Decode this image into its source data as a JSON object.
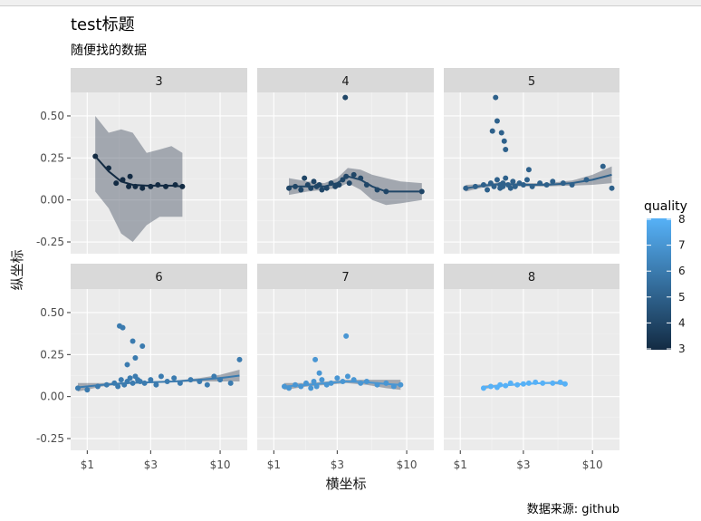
{
  "chart_data": {
    "type": "scatter",
    "title": "test标题",
    "subtitle": "随便找的数据",
    "caption": "数据来源: github",
    "xlabel": "横坐标",
    "ylabel": "纵坐标",
    "x_scale": "log",
    "x_ticks": [
      1,
      3,
      10
    ],
    "x_tick_labels": [
      "$1",
      "$3",
      "$10"
    ],
    "xlim": [
      0.75,
      16
    ],
    "y_ticks": [
      -0.25,
      0,
      0.25,
      0.5
    ],
    "y_tick_labels": [
      "-0.25",
      "0.00",
      "0.25",
      "0.50"
    ],
    "ylim": [
      -0.32,
      0.64
    ],
    "grid": true,
    "facet_by": "quality",
    "legend": {
      "title": "quality",
      "position": "right",
      "type": "colorbar",
      "breaks": [
        3,
        4,
        5,
        6,
        7,
        8
      ],
      "low_color": "#132b43",
      "high_color": "#56b1f7"
    },
    "smooth": true,
    "panels": [
      {
        "label": "3",
        "quality": 3,
        "x": [
          1.15,
          1.45,
          1.65,
          1.85,
          2.05,
          2.1,
          2.3,
          2.6,
          3.0,
          3.4,
          3.9,
          4.6,
          5.2
        ],
        "y": [
          0.26,
          0.19,
          0.1,
          0.12,
          0.08,
          0.14,
          0.08,
          0.07,
          0.08,
          0.09,
          0.08,
          0.09,
          0.08
        ],
        "smooth_x": [
          1.15,
          1.45,
          1.8,
          2.2,
          2.8,
          3.5,
          4.3,
          5.2
        ],
        "smooth_y": [
          0.26,
          0.17,
          0.11,
          0.09,
          0.085,
          0.085,
          0.085,
          0.08
        ],
        "band_low": [
          0.05,
          -0.05,
          -0.2,
          -0.25,
          -0.15,
          -0.1,
          -0.1,
          -0.1
        ],
        "band_high": [
          0.5,
          0.4,
          0.42,
          0.4,
          0.28,
          0.3,
          0.32,
          0.28
        ]
      },
      {
        "label": "4",
        "quality": 4,
        "x": [
          1.3,
          1.45,
          1.6,
          1.7,
          1.8,
          1.9,
          2.0,
          2.1,
          2.2,
          2.3,
          2.5,
          2.7,
          2.9,
          3.1,
          3.3,
          3.5,
          3.7,
          4.0,
          4.5,
          5.0,
          6.0,
          7.0,
          13.0,
          3.45
        ],
        "y": [
          0.07,
          0.08,
          0.06,
          0.13,
          0.09,
          0.07,
          0.11,
          0.08,
          0.09,
          0.06,
          0.07,
          0.1,
          0.08,
          0.09,
          0.12,
          0.14,
          0.1,
          0.15,
          0.13,
          0.09,
          0.06,
          0.05,
          0.05,
          0.61
        ],
        "smooth_x": [
          1.3,
          1.8,
          2.4,
          3.0,
          3.6,
          4.5,
          5.5,
          7.0,
          9.0,
          13.0
        ],
        "smooth_y": [
          0.08,
          0.08,
          0.08,
          0.1,
          0.14,
          0.12,
          0.08,
          0.05,
          0.05,
          0.05
        ],
        "band_low": [
          0.03,
          0.05,
          0.06,
          0.07,
          0.1,
          0.06,
          0.0,
          -0.03,
          -0.02,
          0.0
        ],
        "band_high": [
          0.13,
          0.11,
          0.1,
          0.13,
          0.19,
          0.18,
          0.15,
          0.13,
          0.11,
          0.1
        ]
      },
      {
        "label": "5",
        "quality": 5,
        "x": [
          1.1,
          1.3,
          1.5,
          1.6,
          1.7,
          1.8,
          1.9,
          2.0,
          2.0,
          2.1,
          2.1,
          2.2,
          2.3,
          2.4,
          2.5,
          2.6,
          2.8,
          3.0,
          3.2,
          3.5,
          4.0,
          4.5,
          5.0,
          6.0,
          7.0,
          9.0,
          12.0,
          14.0,
          1.75,
          1.9,
          2.05,
          2.15,
          1.85,
          2.2,
          3.3
        ],
        "y": [
          0.07,
          0.08,
          0.09,
          0.06,
          0.1,
          0.08,
          0.12,
          0.07,
          0.09,
          0.1,
          0.08,
          0.13,
          0.09,
          0.07,
          0.11,
          0.08,
          0.1,
          0.09,
          0.12,
          0.08,
          0.1,
          0.09,
          0.11,
          0.1,
          0.09,
          0.12,
          0.2,
          0.07,
          0.41,
          0.47,
          0.4,
          0.35,
          0.61,
          0.3,
          0.18
        ],
        "smooth_x": [
          1.1,
          1.5,
          2.0,
          3.0,
          4.5,
          7.0,
          10.0,
          14.0
        ],
        "smooth_y": [
          0.07,
          0.085,
          0.095,
          0.09,
          0.09,
          0.1,
          0.12,
          0.15
        ],
        "band_low": [
          0.05,
          0.075,
          0.085,
          0.08,
          0.08,
          0.085,
          0.09,
          0.1
        ],
        "band_high": [
          0.09,
          0.095,
          0.105,
          0.1,
          0.1,
          0.115,
          0.15,
          0.2
        ]
      },
      {
        "label": "6",
        "quality": 6,
        "x": [
          0.85,
          1.0,
          1.2,
          1.4,
          1.6,
          1.7,
          1.8,
          1.9,
          2.0,
          2.1,
          2.2,
          2.3,
          2.4,
          2.5,
          2.7,
          3.0,
          3.3,
          3.6,
          4.0,
          4.5,
          5.0,
          6.0,
          7.0,
          8.0,
          9.0,
          10.0,
          12.0,
          14.0,
          1.75,
          1.85,
          2.2,
          2.6,
          2.0,
          2.3
        ],
        "y": [
          0.05,
          0.04,
          0.06,
          0.07,
          0.08,
          0.06,
          0.1,
          0.07,
          0.09,
          0.11,
          0.08,
          0.12,
          0.1,
          0.09,
          0.08,
          0.1,
          0.07,
          0.12,
          0.09,
          0.11,
          0.08,
          0.1,
          0.09,
          0.07,
          0.12,
          0.1,
          0.08,
          0.22,
          0.42,
          0.41,
          0.33,
          0.3,
          0.19,
          0.23
        ],
        "smooth_x": [
          0.85,
          1.3,
          2.0,
          3.0,
          4.5,
          7.0,
          10.0,
          14.0
        ],
        "smooth_y": [
          0.055,
          0.07,
          0.08,
          0.085,
          0.09,
          0.1,
          0.11,
          0.125
        ],
        "band_low": [
          0.03,
          0.06,
          0.075,
          0.08,
          0.085,
          0.09,
          0.09,
          0.09
        ],
        "band_high": [
          0.08,
          0.08,
          0.085,
          0.09,
          0.095,
          0.11,
          0.13,
          0.16
        ]
      },
      {
        "label": "7",
        "quality": 7,
        "x": [
          1.2,
          1.3,
          1.45,
          1.6,
          1.75,
          1.9,
          2.0,
          2.1,
          2.3,
          2.5,
          2.7,
          3.0,
          3.3,
          3.6,
          4.0,
          4.5,
          5.0,
          6.0,
          7.0,
          8.0,
          9.0,
          2.2,
          3.5,
          2.05
        ],
        "y": [
          0.06,
          0.05,
          0.07,
          0.06,
          0.08,
          0.05,
          0.09,
          0.06,
          0.1,
          0.07,
          0.08,
          0.11,
          0.09,
          0.12,
          0.1,
          0.08,
          0.09,
          0.07,
          0.08,
          0.06,
          0.07,
          0.14,
          0.36,
          0.22
        ],
        "smooth_x": [
          1.2,
          1.8,
          2.5,
          3.5,
          5.0,
          7.0,
          9.0
        ],
        "smooth_y": [
          0.06,
          0.07,
          0.08,
          0.09,
          0.085,
          0.075,
          0.07
        ],
        "band_low": [
          0.04,
          0.06,
          0.07,
          0.08,
          0.07,
          0.05,
          0.04
        ],
        "band_high": [
          0.08,
          0.08,
          0.09,
          0.1,
          0.1,
          0.1,
          0.1
        ]
      },
      {
        "label": "8",
        "quality": 8,
        "x": [
          1.5,
          1.7,
          1.9,
          2.0,
          2.2,
          2.4,
          2.7,
          3.0,
          3.3,
          3.7,
          4.2,
          5.0,
          5.7,
          6.2
        ],
        "y": [
          0.05,
          0.06,
          0.055,
          0.07,
          0.065,
          0.08,
          0.07,
          0.075,
          0.08,
          0.085,
          0.08,
          0.08,
          0.085,
          0.075
        ],
        "smooth_x": [
          1.5,
          2.0,
          3.0,
          4.2,
          5.2,
          6.2
        ],
        "smooth_y": [
          0.055,
          0.065,
          0.075,
          0.08,
          0.082,
          0.078
        ],
        "band_low": [
          0.045,
          0.058,
          0.07,
          0.075,
          0.074,
          0.066
        ],
        "band_high": [
          0.065,
          0.072,
          0.08,
          0.085,
          0.09,
          0.09
        ]
      }
    ]
  }
}
